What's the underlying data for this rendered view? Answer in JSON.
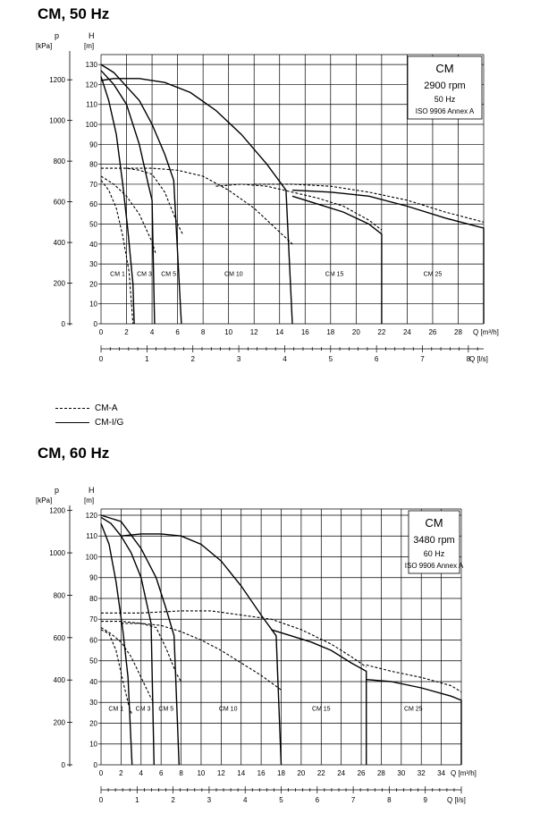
{
  "chart_data": [
    {
      "type": "line",
      "title": "CM, 50 Hz",
      "box": {
        "model": "CM",
        "speed": "2900 rpm",
        "freq": "50 Hz",
        "std": "ISO 9906 Annex A"
      },
      "h_axis": {
        "label": "H",
        "unit": "[m]",
        "ticks": [
          0,
          10,
          20,
          30,
          40,
          50,
          60,
          70,
          80,
          90,
          100,
          110,
          120,
          130
        ],
        "range": [
          0,
          135
        ]
      },
      "p_axis": {
        "label": "p",
        "unit": "[kPa]",
        "ticks": [
          0,
          200,
          400,
          600,
          800,
          1000,
          1200
        ]
      },
      "q_axis": {
        "label": "Q [m³/h]",
        "ticks": [
          0,
          2,
          4,
          6,
          8,
          10,
          12,
          14,
          16,
          18,
          20,
          22,
          24,
          26,
          28
        ],
        "range": [
          0,
          30
        ]
      },
      "ql_axis": {
        "label": "Q [l/s]",
        "ticks": [
          0,
          1,
          2,
          3,
          4,
          5,
          6,
          7,
          8
        ]
      },
      "region_labels": [
        {
          "text": "CM 1",
          "q": 1.3
        },
        {
          "text": "CM 3",
          "q": 3.4
        },
        {
          "text": "CM 5",
          "q": 5.3
        },
        {
          "text": "CM 10",
          "q": 10.4
        },
        {
          "text": "CM 15",
          "q": 18.3
        },
        {
          "text": "CM 25",
          "q": 26.0
        }
      ],
      "series": [
        {
          "style": "solid",
          "points": [
            [
              0,
              124
            ],
            [
              0.6,
              112
            ],
            [
              1.2,
              95
            ],
            [
              1.7,
              70
            ],
            [
              2.1,
              47
            ],
            [
              2.5,
              20
            ],
            [
              2.6,
              0
            ]
          ]
        },
        {
          "style": "solid",
          "points": [
            [
              0,
              127
            ],
            [
              1,
              120
            ],
            [
              2,
              110
            ],
            [
              3,
              90
            ],
            [
              3.7,
              70
            ],
            [
              4,
              62
            ],
            [
              4.2,
              0
            ]
          ]
        },
        {
          "style": "solid",
          "points": [
            [
              0,
              130
            ],
            [
              1,
              126
            ],
            [
              2,
              119
            ],
            [
              3,
              112
            ],
            [
              4,
              100
            ],
            [
              5,
              85
            ],
            [
              5.7,
              72
            ],
            [
              6.3,
              0
            ]
          ]
        },
        {
          "style": "solid",
          "points": [
            [
              0,
              122
            ],
            [
              1,
              123
            ],
            [
              3,
              123
            ],
            [
              5,
              121
            ],
            [
              7,
              116
            ],
            [
              9,
              107
            ],
            [
              11,
              95
            ],
            [
              13,
              80
            ],
            [
              14.5,
              67
            ],
            [
              15,
              0
            ]
          ]
        },
        {
          "style": "solid",
          "points": [
            [
              15,
              64
            ],
            [
              17,
              60
            ],
            [
              19,
              56
            ],
            [
              21,
              50
            ],
            [
              22,
              45
            ],
            [
              22,
              0
            ]
          ]
        },
        {
          "style": "solid",
          "points": [
            [
              15,
              67
            ],
            [
              18,
              66
            ],
            [
              21,
              64
            ],
            [
              24,
              59
            ],
            [
              27,
              53
            ],
            [
              30,
              48
            ],
            [
              30,
              0
            ]
          ]
        },
        {
          "style": "dashed",
          "points": [
            [
              0,
              72
            ],
            [
              0.6,
              67
            ],
            [
              1.2,
              58
            ],
            [
              1.7,
              44
            ],
            [
              2.2,
              26
            ],
            [
              2.5,
              0
            ]
          ]
        },
        {
          "style": "dashed",
          "points": [
            [
              0,
              74
            ],
            [
              1,
              70
            ],
            [
              2,
              64
            ],
            [
              3,
              55
            ],
            [
              4,
              41
            ],
            [
              4.3,
              35
            ]
          ]
        },
        {
          "style": "dashed",
          "points": [
            [
              0,
              78
            ],
            [
              1,
              78
            ],
            [
              2,
              78
            ],
            [
              3,
              77
            ],
            [
              4,
              75
            ],
            [
              5,
              66
            ],
            [
              6,
              50
            ],
            [
              6.4,
              45
            ]
          ]
        },
        {
          "style": "dashed",
          "points": [
            [
              2,
              78
            ],
            [
              4,
              78
            ],
            [
              6,
              77
            ],
            [
              8,
              74
            ],
            [
              10,
              67
            ],
            [
              12,
              58
            ],
            [
              14,
              46
            ],
            [
              15,
              40
            ]
          ]
        },
        {
          "style": "dashed",
          "points": [
            [
              9,
              69
            ],
            [
              11,
              70
            ],
            [
              13,
              69
            ],
            [
              15,
              66
            ],
            [
              17,
              63
            ],
            [
              19,
              59
            ],
            [
              21,
              52
            ],
            [
              22,
              47
            ]
          ]
        },
        {
          "style": "dashed",
          "points": [
            [
              12,
              70
            ],
            [
              15,
              70
            ],
            [
              18,
              69
            ],
            [
              21,
              66
            ],
            [
              24,
              62
            ],
            [
              27,
              56
            ],
            [
              30,
              51
            ]
          ]
        }
      ]
    },
    {
      "type": "line",
      "title": "CM, 60 Hz",
      "box": {
        "model": "CM",
        "speed": "3480 rpm",
        "freq": "60 Hz",
        "std": "ISO 9906 Annex A"
      },
      "h_axis": {
        "label": "H",
        "unit": "[m]",
        "ticks": [
          0,
          10,
          20,
          30,
          40,
          50,
          60,
          70,
          80,
          90,
          100,
          110,
          120
        ],
        "range": [
          0,
          123
        ]
      },
      "p_axis": {
        "label": "p",
        "unit": "[kPa]",
        "ticks": [
          0,
          200,
          400,
          600,
          800,
          1000,
          1200
        ]
      },
      "q_axis": {
        "label": "Q [m³/h]",
        "ticks": [
          0,
          2,
          4,
          6,
          8,
          10,
          12,
          14,
          16,
          18,
          20,
          22,
          24,
          26,
          28,
          30,
          32,
          34
        ],
        "range": [
          0,
          36
        ]
      },
      "ql_axis": {
        "label": "Q [l/s]",
        "ticks": [
          0,
          1,
          2,
          3,
          4,
          5,
          6,
          7,
          8,
          9
        ]
      },
      "region_labels": [
        {
          "text": "CM 1",
          "q": 1.5
        },
        {
          "text": "CM 3",
          "q": 4.2
        },
        {
          "text": "CM 5",
          "q": 6.5
        },
        {
          "text": "CM 10",
          "q": 12.7
        },
        {
          "text": "CM 15",
          "q": 22.0
        },
        {
          "text": "CM 25",
          "q": 31.2
        }
      ],
      "series": [
        {
          "style": "solid",
          "points": [
            [
              0,
              116
            ],
            [
              0.8,
              106
            ],
            [
              1.5,
              88
            ],
            [
              2.2,
              64
            ],
            [
              2.7,
              42
            ],
            [
              3.1,
              0
            ]
          ]
        },
        {
          "style": "solid",
          "points": [
            [
              0,
              119
            ],
            [
              1,
              116
            ],
            [
              2,
              110
            ],
            [
              3,
              102
            ],
            [
              4,
              90
            ],
            [
              5,
              68
            ],
            [
              5.3,
              0
            ]
          ]
        },
        {
          "style": "solid",
          "points": [
            [
              0,
              120
            ],
            [
              2,
              117
            ],
            [
              4,
              104
            ],
            [
              5.5,
              90
            ],
            [
              6.5,
              75
            ],
            [
              7.3,
              62
            ],
            [
              7.8,
              0
            ]
          ]
        },
        {
          "style": "solid",
          "points": [
            [
              2,
              110
            ],
            [
              4,
              111
            ],
            [
              6,
              111
            ],
            [
              8,
              110
            ],
            [
              10,
              106
            ],
            [
              12,
              98
            ],
            [
              14,
              86
            ],
            [
              16,
              72
            ],
            [
              17.5,
              62
            ],
            [
              18,
              0
            ]
          ]
        },
        {
          "style": "solid",
          "points": [
            [
              17,
              65
            ],
            [
              19,
              62
            ],
            [
              21,
              59
            ],
            [
              23,
              55
            ],
            [
              25,
              49
            ],
            [
              26.5,
              45
            ],
            [
              26.5,
              0
            ]
          ]
        },
        {
          "style": "solid",
          "points": [
            [
              26.5,
              41
            ],
            [
              29,
              40
            ],
            [
              32,
              37
            ],
            [
              35,
              33
            ],
            [
              36,
              31
            ],
            [
              36,
              0
            ]
          ]
        },
        {
          "style": "dashed",
          "points": [
            [
              0,
              65
            ],
            [
              0.8,
              63
            ],
            [
              1.5,
              55
            ],
            [
              2.2,
              40
            ],
            [
              2.8,
              28
            ],
            [
              3.1,
              24
            ]
          ]
        },
        {
          "style": "dashed",
          "points": [
            [
              0,
              66
            ],
            [
              1,
              63
            ],
            [
              2,
              59
            ],
            [
              3,
              52
            ],
            [
              4,
              42
            ],
            [
              5,
              32
            ],
            [
              5.3,
              30
            ]
          ]
        },
        {
          "style": "dashed",
          "points": [
            [
              0,
              69
            ],
            [
              2,
              69
            ],
            [
              4,
              68
            ],
            [
              5.5,
              66
            ],
            [
              6.5,
              56
            ],
            [
              7.5,
              44
            ],
            [
              8,
              40
            ]
          ]
        },
        {
          "style": "dashed",
          "points": [
            [
              2,
              68
            ],
            [
              4,
              68
            ],
            [
              6,
              67
            ],
            [
              8,
              64
            ],
            [
              10,
              60
            ],
            [
              12,
              55
            ],
            [
              14,
              49
            ],
            [
              16,
              43
            ],
            [
              18,
              36
            ]
          ]
        },
        {
          "style": "dashed",
          "points": [
            [
              0,
              73
            ],
            [
              4,
              73
            ],
            [
              8,
              74
            ],
            [
              11,
              74
            ],
            [
              14,
              72
            ],
            [
              17,
              70
            ],
            [
              20,
              65
            ],
            [
              23,
              58
            ],
            [
              25,
              52
            ],
            [
              26.5,
              47
            ]
          ]
        },
        {
          "style": "dashed",
          "points": [
            [
              26.5,
              48
            ],
            [
              29,
              45
            ],
            [
              32,
              42
            ],
            [
              35,
              38
            ],
            [
              36,
              35
            ]
          ]
        }
      ]
    }
  ],
  "legend": [
    {
      "style": "dashed",
      "label": "CM-A"
    },
    {
      "style": "solid",
      "label": "CM-I/G"
    }
  ]
}
